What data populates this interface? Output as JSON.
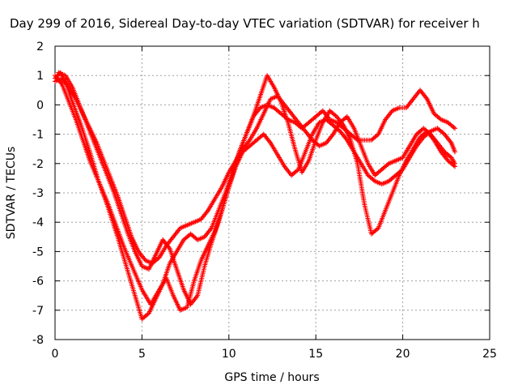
{
  "chart_data": {
    "type": "scatter",
    "title": "Day 299 of 2016, Sidereal Day-to-day VTEC variation (SDTVAR) for receiver h",
    "xlabel": "GPS time / hours",
    "ylabel": "SDTVAR / TECUs",
    "xlim": [
      0,
      25
    ],
    "ylim": [
      -8,
      2
    ],
    "xticks": [
      0,
      5,
      10,
      15,
      20,
      25
    ],
    "yticks": [
      -8,
      -7,
      -6,
      -5,
      -4,
      -3,
      -2,
      -1,
      0,
      1,
      2
    ],
    "grid": true,
    "marker": "+",
    "color": "#ff0000",
    "series": [
      {
        "x": [
          0.0,
          0.3,
          0.6,
          1.0,
          1.5,
          2.0,
          2.5,
          3.0,
          3.6,
          4.2,
          4.6,
          5.0,
          5.4,
          5.8,
          6.2,
          6.6,
          7.0,
          7.4,
          7.8,
          8.2,
          8.6,
          9.0,
          9.4,
          9.8,
          10.2,
          10.6,
          11.0,
          11.4,
          11.8,
          12.2,
          12.6,
          13.0,
          13.4,
          13.8,
          14.2,
          14.6,
          15.0,
          15.4,
          15.8,
          16.2,
          16.6,
          17.0,
          17.4,
          17.8,
          18.2,
          18.6,
          19.0,
          19.4,
          19.8,
          20.2,
          20.6,
          21.0,
          21.4,
          21.8,
          22.2,
          22.6,
          23.0
        ],
        "y": [
          0.9,
          1.1,
          0.8,
          0.1,
          -0.7,
          -1.6,
          -2.6,
          -3.4,
          -4.5,
          -5.7,
          -6.5,
          -7.3,
          -7.1,
          -6.6,
          -6.1,
          -5.4,
          -5.0,
          -4.6,
          -4.4,
          -4.6,
          -4.5,
          -4.2,
          -3.6,
          -3.0,
          -2.3,
          -1.6,
          -1.0,
          -0.4,
          -0.1,
          0.0,
          -0.1,
          -0.3,
          -0.5,
          -0.6,
          -0.8,
          -0.6,
          -0.4,
          -0.2,
          -0.5,
          -0.6,
          -0.8,
          -1.0,
          -1.2,
          -1.2,
          -1.2,
          -1.0,
          -0.5,
          -0.2,
          -0.1,
          -0.1,
          0.2,
          0.5,
          0.2,
          -0.3,
          -0.5,
          -0.6,
          -0.8
        ]
      },
      {
        "x": [
          0.0,
          0.4,
          0.8,
          1.2,
          1.6,
          2.0,
          2.5,
          3.0,
          3.5,
          4.0,
          4.5,
          5.0,
          5.5,
          6.0,
          6.4,
          6.8,
          7.2,
          7.6,
          8.0,
          8.4,
          8.8,
          9.2,
          9.6,
          10.0,
          10.4,
          10.8,
          11.2,
          11.6,
          12.0,
          12.4,
          12.8,
          13.2,
          13.6,
          14.0,
          14.4,
          14.8,
          15.2,
          15.6,
          16.0,
          16.4,
          16.8,
          17.2,
          17.6,
          18.0,
          18.4,
          18.8,
          19.2,
          19.6,
          20.0,
          20.4,
          20.8,
          21.2,
          21.6,
          22.0,
          22.4,
          22.8,
          23.0
        ],
        "y": [
          1.0,
          0.7,
          0.1,
          -0.5,
          -1.2,
          -1.9,
          -2.6,
          -3.3,
          -4.1,
          -4.9,
          -5.6,
          -6.3,
          -6.8,
          -6.3,
          -5.9,
          -6.5,
          -7.0,
          -6.9,
          -6.0,
          -5.3,
          -4.8,
          -4.3,
          -3.6,
          -2.8,
          -2.1,
          -1.6,
          -1.4,
          -1.2,
          -1.0,
          -1.3,
          -1.7,
          -2.1,
          -2.4,
          -2.2,
          -1.6,
          -1.0,
          -0.6,
          -0.5,
          -0.7,
          -0.9,
          -1.2,
          -1.6,
          -2.0,
          -2.4,
          -2.6,
          -2.7,
          -2.6,
          -2.4,
          -2.2,
          -1.8,
          -1.4,
          -1.1,
          -0.9,
          -0.8,
          -1.0,
          -1.3,
          -1.6
        ]
      },
      {
        "x": [
          0.0,
          0.4,
          0.8,
          1.2,
          1.6,
          2.0,
          2.4,
          2.8,
          3.2,
          3.6,
          4.0,
          4.4,
          4.8,
          5.2,
          5.6,
          6.0,
          6.4,
          6.8,
          7.2,
          7.6,
          8.0,
          8.4,
          8.8,
          9.2,
          9.6,
          10.0,
          10.4,
          10.8,
          11.2,
          11.6,
          12.0,
          12.4,
          12.8,
          13.2,
          13.6,
          14.0,
          14.4,
          14.8,
          15.2,
          15.6,
          16.0,
          16.4,
          16.8,
          17.2,
          17.6,
          18.0,
          18.4,
          18.8,
          19.2,
          19.6,
          20.0,
          20.4,
          20.8,
          21.2,
          21.6,
          22.0,
          22.4,
          22.8,
          23.0
        ],
        "y": [
          0.8,
          0.9,
          0.6,
          0.2,
          -0.3,
          -0.8,
          -1.3,
          -1.9,
          -2.5,
          -3.1,
          -3.8,
          -4.5,
          -5.0,
          -5.3,
          -5.4,
          -5.2,
          -4.8,
          -4.5,
          -4.2,
          -4.1,
          -4.0,
          -3.9,
          -3.6,
          -3.2,
          -2.8,
          -2.3,
          -1.9,
          -1.5,
          -1.2,
          -0.8,
          -0.3,
          0.2,
          0.3,
          0.0,
          -0.3,
          -0.6,
          -0.9,
          -1.2,
          -1.4,
          -1.3,
          -1.0,
          -0.6,
          -0.4,
          -0.8,
          -1.4,
          -2.0,
          -2.4,
          -2.2,
          -2.0,
          -1.9,
          -1.8,
          -1.4,
          -1.0,
          -0.8,
          -1.0,
          -1.3,
          -1.6,
          -1.8,
          -2.0
        ]
      },
      {
        "x": [
          0.2,
          0.6,
          1.0,
          1.4,
          1.8,
          2.2,
          2.6,
          3.0,
          3.4,
          3.8,
          4.2,
          4.6,
          5.0,
          5.4,
          5.8,
          6.2,
          6.6,
          7.0,
          7.4,
          7.8,
          8.2,
          8.6,
          9.0,
          9.4,
          9.8,
          10.2,
          10.6,
          11.0,
          11.4,
          11.8,
          12.2,
          12.6,
          13.0,
          13.4,
          13.8,
          14.2,
          14.6,
          15.0,
          15.4,
          15.8,
          16.2,
          16.6,
          17.0,
          17.4,
          17.8,
          18.2,
          18.6,
          19.0,
          19.4,
          19.8,
          20.2,
          20.6,
          21.0,
          21.4,
          21.8,
          22.2,
          22.6,
          23.0
        ],
        "y": [
          1.1,
          1.0,
          0.6,
          0.0,
          -0.6,
          -1.2,
          -1.8,
          -2.4,
          -3.0,
          -3.7,
          -4.4,
          -5.0,
          -5.5,
          -5.6,
          -5.1,
          -4.6,
          -4.9,
          -5.6,
          -6.3,
          -6.8,
          -6.5,
          -5.5,
          -4.7,
          -4.0,
          -3.2,
          -2.4,
          -1.6,
          -1.0,
          -0.4,
          0.3,
          1.0,
          0.6,
          0.1,
          -0.6,
          -1.5,
          -2.3,
          -1.9,
          -1.2,
          -0.6,
          -0.2,
          -0.4,
          -0.7,
          -1.2,
          -2.0,
          -3.4,
          -4.4,
          -4.2,
          -3.6,
          -3.0,
          -2.4,
          -1.9,
          -1.5,
          -1.1,
          -0.9,
          -1.2,
          -1.6,
          -1.9,
          -2.1
        ]
      }
    ]
  }
}
